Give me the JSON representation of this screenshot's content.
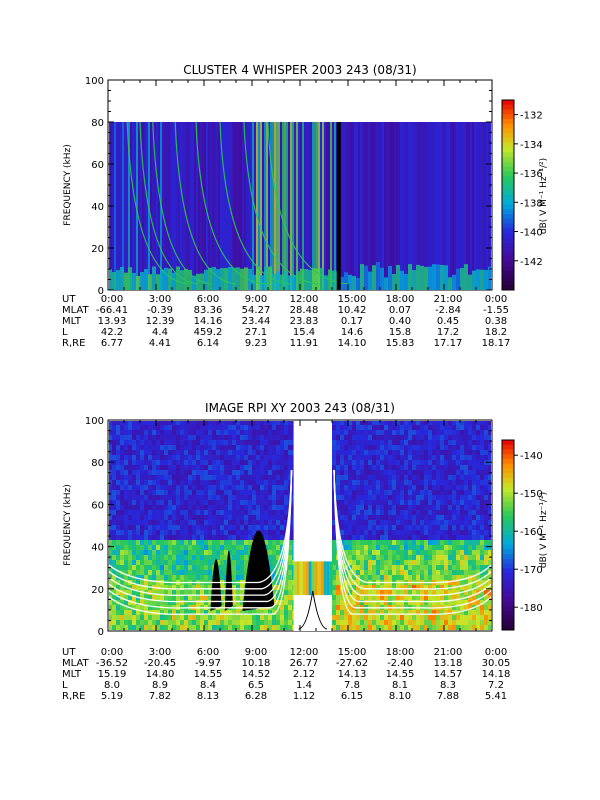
{
  "chart_data": [
    {
      "type": "heatmap",
      "title": "CLUSTER 4 WHISPER 2003 243 (08/31)",
      "ylabel": "FREQUENCY (kHz)",
      "ylim": [
        0,
        100
      ],
      "y_ticks": [
        "0",
        "20",
        "40",
        "60",
        "80",
        "100"
      ],
      "data_ylim": [
        0,
        80
      ],
      "colorbar": {
        "label": "dB( V M⁻¹ Hz⁻¹/²)",
        "range": [
          -144,
          -131
        ],
        "ticks": [
          "-132",
          "-134",
          "-136",
          "-138",
          "-140",
          "-142"
        ],
        "tick_values": [
          -132,
          -134,
          -136,
          -138,
          -140,
          -142
        ]
      },
      "background_level": -141,
      "time_axis": {
        "rows": [
          {
            "label": "UT",
            "values": [
              "0:00",
              "3:00",
              "6:00",
              "9:00",
              "12:00",
              "15:00",
              "18:00",
              "21:00",
              "0:00"
            ]
          },
          {
            "label": "MLAT",
            "values": [
              "-66.41",
              "-0.39",
              "83.36",
              "54.27",
              "28.48",
              "10.42",
              "0.07",
              "-2.84",
              "-1.55"
            ]
          },
          {
            "label": "MLT",
            "values": [
              "13.93",
              "12.39",
              "14.16",
              "23.44",
              "23.83",
              "0.17",
              "0.40",
              "0.45",
              "0.38"
            ]
          },
          {
            "label": "L",
            "values": [
              "42.2",
              "4.4",
              "459.2",
              "27.1",
              "15.4",
              "14.6",
              "15.8",
              "17.2",
              "18.2"
            ]
          },
          {
            "label": "R,RE",
            "values": [
              "6.77",
              "4.41",
              "6.14",
              "9.23",
              "11.91",
              "14.10",
              "15.83",
              "17.17",
              "18.17"
            ]
          }
        ]
      },
      "data_gap_hour": 14.3
    },
    {
      "type": "heatmap",
      "title": "IMAGE RPI XY 2003 243 (08/31)",
      "ylabel": "FREQUENCY (kHz)",
      "ylim": [
        0,
        100
      ],
      "y_ticks": [
        "0",
        "20",
        "40",
        "60",
        "80",
        "100"
      ],
      "colorbar": {
        "label": "dB( V M⁻¹ Hz⁻¹/²)",
        "range": [
          -186,
          -136
        ],
        "ticks": [
          "-140",
          "-150",
          "-160",
          "-170",
          "-180"
        ],
        "tick_values": [
          -140,
          -150,
          -160,
          -170,
          -180
        ]
      },
      "gap_hours": [
        11.6,
        14.0
      ],
      "time_axis": {
        "rows": [
          {
            "label": "UT",
            "values": [
              "0:00",
              "3:00",
              "6:00",
              "9:00",
              "12:00",
              "15:00",
              "18:00",
              "21:00",
              "0:00"
            ]
          },
          {
            "label": "MLAT",
            "values": [
              "-36.52",
              "-20.45",
              "-9.97",
              "10.18",
              "26.77",
              "-27.62",
              "-2.40",
              "13.18",
              "30.05"
            ]
          },
          {
            "label": "MLT",
            "values": [
              "15.19",
              "14.80",
              "14.55",
              "14.52",
              "2.12",
              "14.13",
              "14.55",
              "14.57",
              "14.18"
            ]
          },
          {
            "label": "L",
            "values": [
              "8.0",
              "8.9",
              "8.4",
              "6.5",
              "1.4",
              "7.8",
              "8.1",
              "8.3",
              "7.2"
            ]
          },
          {
            "label": "R,RE",
            "values": [
              "5.19",
              "7.82",
              "8.13",
              "6.28",
              "1.12",
              "6.15",
              "8.10",
              "7.88",
              "5.41"
            ]
          }
        ]
      }
    }
  ]
}
